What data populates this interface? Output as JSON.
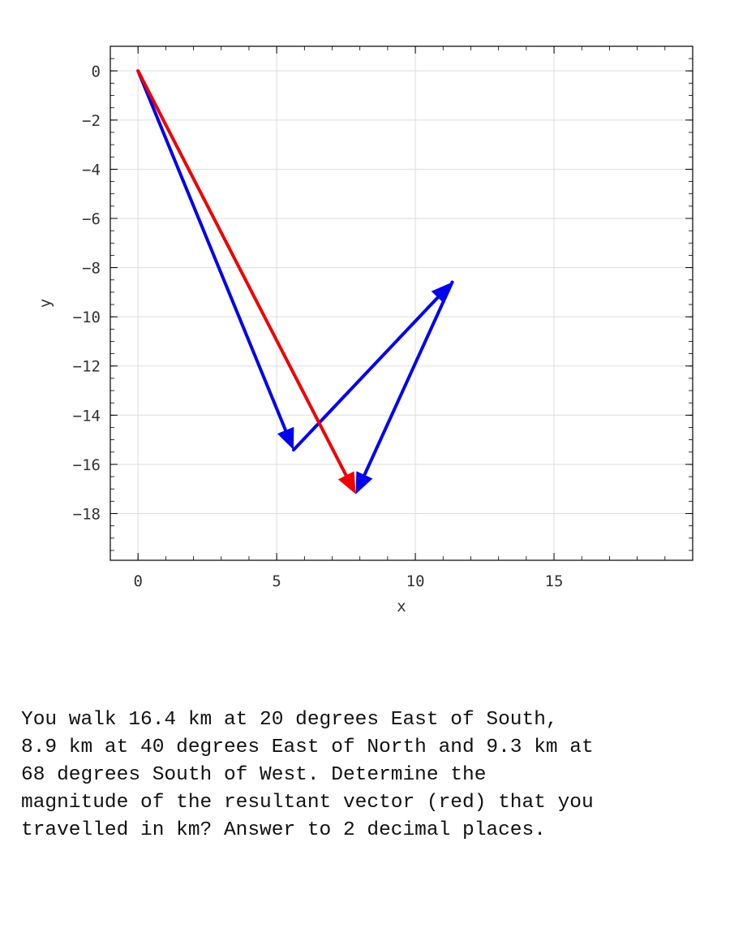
{
  "chart_data": {
    "type": "vector-plot",
    "xlabel": "x",
    "ylabel": "y",
    "xlim": [
      -1,
      20
    ],
    "ylim": [
      -19.9,
      1
    ],
    "x_ticks": [
      0,
      5,
      10,
      15
    ],
    "y_ticks": [
      0,
      -2,
      -4,
      -6,
      -8,
      -10,
      -12,
      -14,
      -16,
      -18
    ],
    "grid": true,
    "vectors": [
      {
        "kind": "component",
        "color": "#0000ee",
        "from": [
          0,
          0
        ],
        "to": [
          5.61,
          -15.41
        ]
      },
      {
        "kind": "component",
        "color": "#0000ee",
        "from": [
          5.61,
          -15.41
        ],
        "to": [
          11.33,
          -8.59
        ]
      },
      {
        "kind": "component",
        "color": "#0000ee",
        "from": [
          11.33,
          -8.59
        ],
        "to": [
          7.85,
          -17.21
        ]
      },
      {
        "kind": "resultant",
        "color": "#ee0000",
        "from": [
          0,
          0
        ],
        "to": [
          7.85,
          -17.21
        ]
      }
    ]
  },
  "question": {
    "text": "You walk 16.4 km at 20 degrees East of South,\n8.9 km at 40 degrees East of North and 9.3 km at\n68 degrees South of West.  Determine the\nmagnitude of the resultant vector (red) that you\ntravelled in km? Answer to 2 decimal places."
  }
}
